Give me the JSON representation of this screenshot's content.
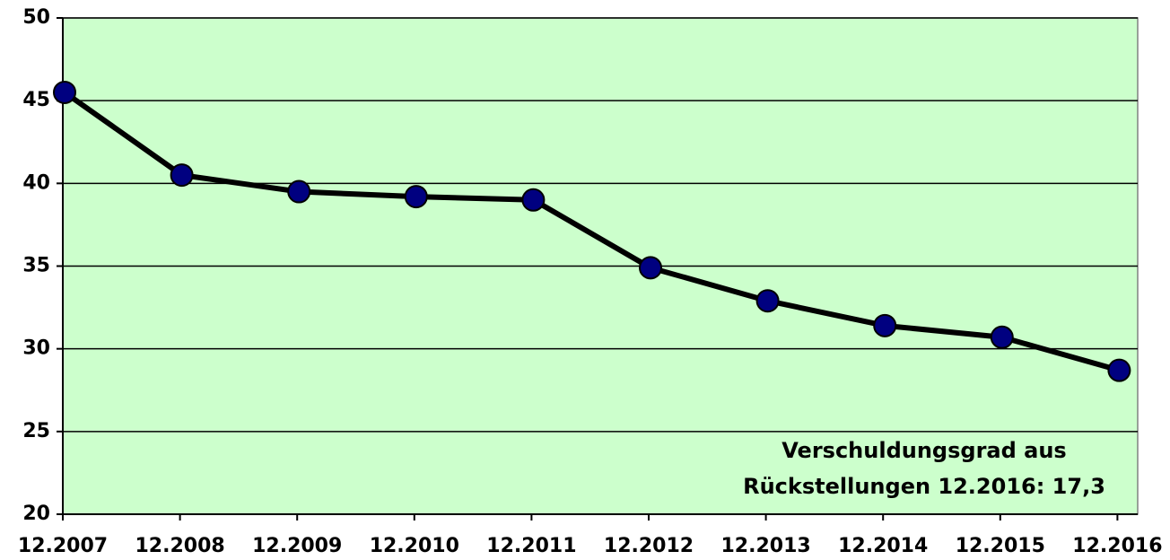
{
  "chart_data": {
    "type": "line",
    "categories": [
      "12.2007",
      "12.2008",
      "12.2009",
      "12.2010",
      "12.2011",
      "12.2012",
      "12.2013",
      "12.2014",
      "12.2015",
      "12.2016"
    ],
    "values": [
      45.5,
      40.5,
      39.5,
      39.2,
      39.0,
      34.9,
      32.9,
      31.4,
      30.7,
      28.7
    ],
    "color": "#000000",
    "marker_color": "#000080",
    "background": "#ccffcc",
    "ylim": [
      20,
      50
    ],
    "yticks": [
      20,
      25,
      30,
      35,
      40,
      45,
      50
    ],
    "grid": true,
    "annotation": [
      "Verschuldungsgrad aus",
      "Rückstellungen 12.2016: 17,3"
    ]
  }
}
